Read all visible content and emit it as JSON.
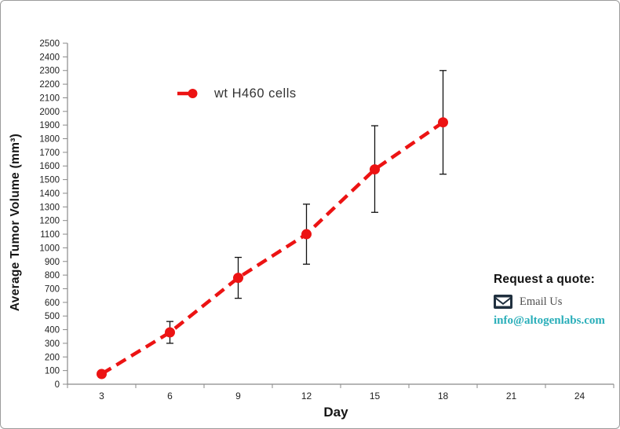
{
  "chart_data": {
    "type": "line",
    "title": "",
    "xlabel": "Day",
    "ylabel": "Average Tumor Volume (mm³)",
    "x_categories": [
      3,
      6,
      9,
      12,
      15,
      18,
      21,
      24
    ],
    "ylim": [
      0,
      2500
    ],
    "ytick_step": 100,
    "grid": false,
    "legend_position": "inside-top-left",
    "axis_color": "#8a8a8a",
    "tick_label_color": "#1f1f1f",
    "error_bar_color": "#111111",
    "series": [
      {
        "name": "wt H460 cells",
        "color": "#ec1313",
        "line_style": "dashed",
        "marker": "circle",
        "x": [
          3,
          6,
          9,
          12,
          15,
          18
        ],
        "values": [
          75,
          380,
          780,
          1100,
          1575,
          1920
        ],
        "error_plus": [
          0,
          80,
          150,
          220,
          320,
          380
        ],
        "error_minus": [
          0,
          80,
          150,
          220,
          315,
          380
        ]
      }
    ]
  },
  "request_quote": {
    "heading": "Request a quote:",
    "email_label": "Email Us",
    "email_address": "info@altogenlabs.com",
    "email_color": "#29aeb9",
    "envelope_color": "#20303f"
  }
}
